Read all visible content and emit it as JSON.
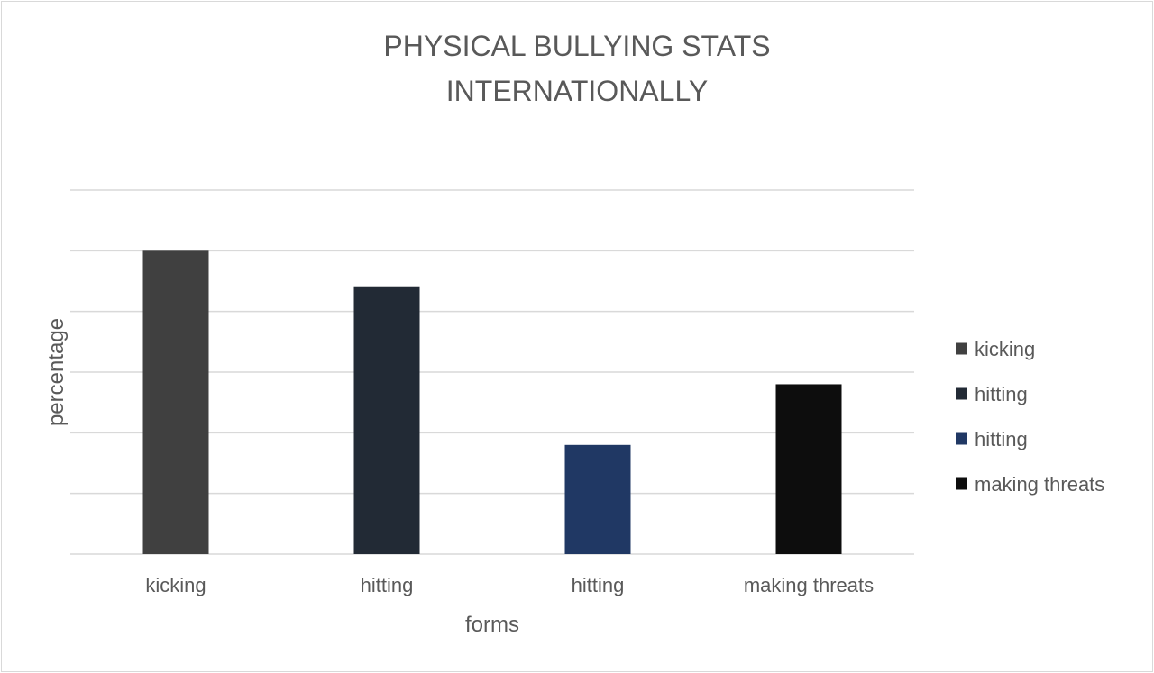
{
  "chart_data": {
    "type": "bar",
    "title_lines": [
      "PHYSICAL BULLYING STATS",
      "INTERNATIONALLY"
    ],
    "xlabel": "forms",
    "ylabel": "percentage",
    "categories": [
      "kicking",
      "hitting",
      "hitting",
      "making threats"
    ],
    "values": [
      50,
      44,
      18,
      28
    ],
    "colors": [
      "#404040",
      "#222a35",
      "#203864",
      "#0d0d0d"
    ],
    "ylim": [
      0,
      60
    ],
    "y_tick_step": 10,
    "y_tick_labels_shown": false,
    "grid": true,
    "legend": {
      "position": "right",
      "entries": [
        "kicking",
        "hitting",
        "hitting",
        " making threats"
      ]
    }
  }
}
